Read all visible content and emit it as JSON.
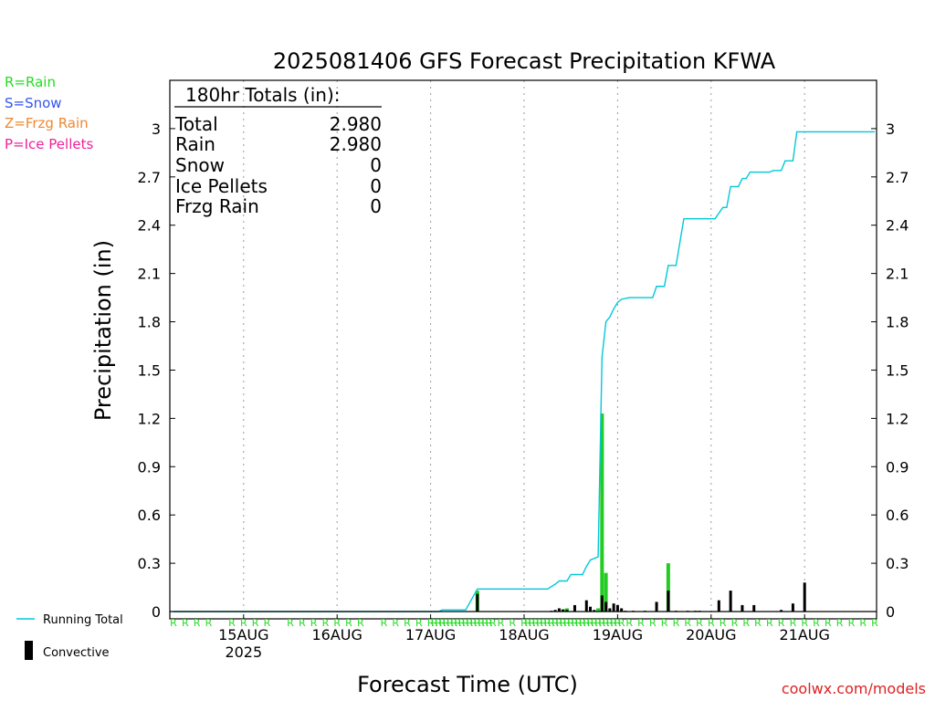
{
  "chart_data": {
    "type": "bar+line",
    "title": "2025081406 GFS Forecast Precipitation KFWA",
    "ylabel": "Precipitation (in)",
    "xlabel": "Forecast Time (UTC)",
    "credit": "coolwx.com/models",
    "ylim": [
      0,
      3.3
    ],
    "y_ticks": [
      "0",
      "0.3",
      "0.6",
      "0.9",
      "1.2",
      "1.5",
      "1.8",
      "2.1",
      "2.4",
      "2.7",
      "3"
    ],
    "x_range_hours": [
      0,
      180
    ],
    "x_day_ticks": [
      {
        "label": "15AUG",
        "sub": "2025",
        "hour": 18
      },
      {
        "label": "16AUG",
        "sub": "",
        "hour": 42
      },
      {
        "label": "17AUG",
        "sub": "",
        "hour": 66
      },
      {
        "label": "18AUG",
        "sub": "",
        "hour": 90
      },
      {
        "label": "19AUG",
        "sub": "",
        "hour": 114
      },
      {
        "label": "20AUG",
        "sub": "",
        "hour": 138
      },
      {
        "label": "21AUG",
        "sub": "",
        "hour": 162
      }
    ],
    "totals": {
      "header": "180hr Totals (in):",
      "rows": [
        {
          "label": "Total",
          "value": "2.980"
        },
        {
          "label": "Rain",
          "value": "2.980"
        },
        {
          "label": "Snow",
          "value": "0"
        },
        {
          "label": "Ice Pellets",
          "value": "0"
        },
        {
          "label": "Frzg Rain",
          "value": "0"
        }
      ]
    },
    "type_legend": [
      {
        "text": "R=Rain",
        "color": "#22dd22"
      },
      {
        "text": "S=Snow",
        "color": "#3355ee"
      },
      {
        "text": "Z=Frzg Rain",
        "color": "#ee8833"
      },
      {
        "text": "P=Ice Pellets",
        "color": "#ee2299"
      }
    ],
    "series_legend": [
      {
        "text": "Running Total",
        "color": "#00c8d8"
      },
      {
        "text": "Convective",
        "color": "#000000"
      }
    ],
    "series": [
      {
        "name": "Running Total",
        "color": "#00c8d8",
        "points": [
          [
            0,
            0
          ],
          [
            68,
            0
          ],
          [
            69,
            0.01
          ],
          [
            72,
            0.01
          ],
          [
            75,
            0.01
          ],
          [
            78,
            0.14
          ],
          [
            96,
            0.14
          ],
          [
            98,
            0.17
          ],
          [
            99,
            0.19
          ],
          [
            101,
            0.19
          ],
          [
            102,
            0.23
          ],
          [
            105,
            0.23
          ],
          [
            106,
            0.28
          ],
          [
            107,
            0.32
          ],
          [
            109,
            0.34
          ],
          [
            110,
            1.58
          ],
          [
            111,
            1.8
          ],
          [
            112,
            1.83
          ],
          [
            113,
            1.88
          ],
          [
            114,
            1.92
          ],
          [
            115,
            1.94
          ],
          [
            117,
            1.95
          ],
          [
            123,
            1.95
          ],
          [
            124,
            2.02
          ],
          [
            126,
            2.02
          ],
          [
            127,
            2.15
          ],
          [
            129,
            2.15
          ],
          [
            131,
            2.44
          ],
          [
            139,
            2.44
          ],
          [
            141,
            2.51
          ],
          [
            142,
            2.51
          ],
          [
            143,
            2.64
          ],
          [
            145,
            2.64
          ],
          [
            146,
            2.69
          ],
          [
            147,
            2.69
          ],
          [
            148,
            2.73
          ],
          [
            153,
            2.73
          ],
          [
            154,
            2.74
          ],
          [
            156,
            2.74
          ],
          [
            157,
            2.8
          ],
          [
            159,
            2.8
          ],
          [
            160,
            2.98
          ],
          [
            180,
            2.98
          ]
        ]
      },
      {
        "name": "Rain",
        "color": "#22cc22",
        "bars": [
          [
            78,
            0.13
          ],
          [
            100,
            0.015
          ],
          [
            101,
            0.02
          ],
          [
            109,
            0.02
          ],
          [
            110,
            1.23
          ],
          [
            111,
            0.24
          ],
          [
            127,
            0.3
          ]
        ]
      },
      {
        "name": "Convective",
        "color": "#000000",
        "bars": [
          [
            78,
            0.11
          ],
          [
            97,
            0.005
          ],
          [
            98,
            0.01
          ],
          [
            99,
            0.02
          ],
          [
            100,
            0.012
          ],
          [
            101,
            0.01
          ],
          [
            103,
            0.04
          ],
          [
            106,
            0.07
          ],
          [
            107,
            0.03
          ],
          [
            108,
            0.01
          ],
          [
            110,
            0.1
          ],
          [
            111,
            0.06
          ],
          [
            112,
            0.02
          ],
          [
            113,
            0.05
          ],
          [
            114,
            0.04
          ],
          [
            115,
            0.02
          ],
          [
            116,
            0.005
          ],
          [
            118,
            0.005
          ],
          [
            121,
            0.005
          ],
          [
            124,
            0.06
          ],
          [
            127,
            0.13
          ],
          [
            129,
            0.005
          ],
          [
            132,
            0.005
          ],
          [
            134,
            0.005
          ],
          [
            135,
            0.005
          ],
          [
            140,
            0.07
          ],
          [
            143,
            0.13
          ],
          [
            146,
            0.04
          ],
          [
            149,
            0.04
          ],
          [
            156,
            0.01
          ],
          [
            159,
            0.05
          ],
          [
            162,
            0.18
          ]
        ]
      }
    ],
    "precip_type_markers": {
      "letter": "R",
      "color": "#22dd22",
      "hours": [
        0,
        3,
        6,
        9,
        15,
        18,
        21,
        24,
        30,
        33,
        36,
        39,
        42,
        45,
        48,
        54,
        57,
        60,
        63,
        66,
        67,
        68,
        69,
        70,
        71,
        72,
        73,
        74,
        75,
        76,
        77,
        78,
        79,
        80,
        81,
        82,
        84,
        87,
        90,
        91,
        92,
        93,
        94,
        95,
        96,
        97,
        98,
        99,
        100,
        101,
        102,
        103,
        104,
        105,
        106,
        107,
        108,
        109,
        110,
        111,
        112,
        113,
        114,
        115,
        117,
        120,
        123,
        126,
        129,
        132,
        135,
        138,
        141,
        144,
        147,
        150,
        153,
        156,
        159,
        162,
        165,
        168,
        171,
        174,
        177,
        180
      ]
    }
  }
}
